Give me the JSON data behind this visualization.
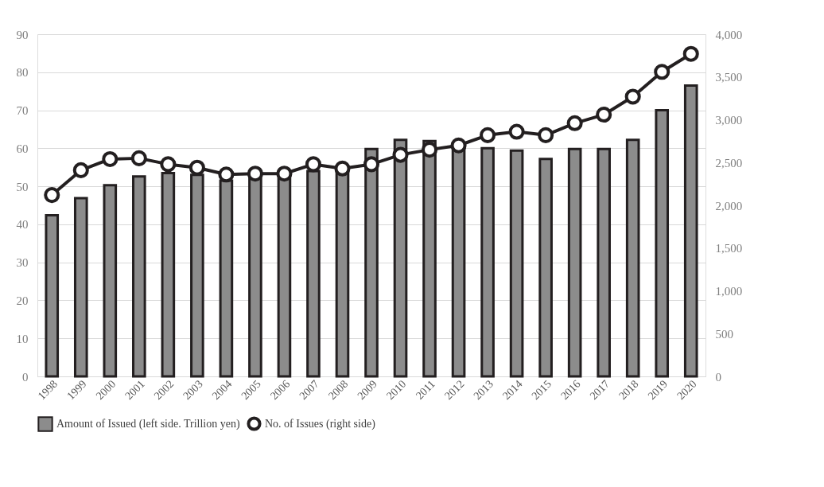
{
  "chart_data": {
    "type": "bar",
    "categories": [
      "1998",
      "1999",
      "2000",
      "2001",
      "2002",
      "2003",
      "2004",
      "2005",
      "2006",
      "2007",
      "2008",
      "2009",
      "2010",
      "2011",
      "2012",
      "2013",
      "2014",
      "2015",
      "2016",
      "2017",
      "2018",
      "2019",
      "2020"
    ],
    "series": [
      {
        "name": "Amount of Issued (left side. Trillion yen)",
        "color": "#8c8c8c",
        "values": [
          42.4,
          46.9,
          50.3,
          52.6,
          53.5,
          53,
          51.5,
          52,
          52,
          54,
          53.5,
          59.8,
          62.2,
          61.9,
          60.5,
          60,
          59.4,
          57.2,
          59.8,
          59.8,
          62.2,
          70,
          76.5
        ]
      },
      {
        "name": "No. of Issues (right side)",
        "type": "line",
        "axis": "y2",
        "color": "#231f20",
        "marker": "circle",
        "values": [
          2120,
          2410,
          2540,
          2550,
          2480,
          2440,
          2360,
          2370,
          2370,
          2480,
          2430,
          2480,
          2590,
          2650,
          2700,
          2820,
          2860,
          2820,
          2960,
          3060,
          3270,
          3560,
          3770
        ]
      }
    ],
    "ylim": [
      0,
      90
    ],
    "yticks": [
      0,
      10,
      20,
      30,
      40,
      50,
      60,
      70,
      80,
      90
    ],
    "y2lim": [
      0,
      4000
    ],
    "y2ticks": [
      0,
      500,
      {
        "value": 1000,
        "label": "1,000"
      },
      {
        "value": 1500,
        "label": "1,500"
      },
      {
        "value": 2000,
        "label": "2,000"
      },
      {
        "value": 2500,
        "label": "2,500"
      },
      {
        "value": 3000,
        "label": "3,000"
      },
      {
        "value": 3500,
        "label": "3,500"
      },
      {
        "value": 4000,
        "label": "4,000"
      }
    ],
    "grid": "y",
    "legend": "bottom"
  }
}
